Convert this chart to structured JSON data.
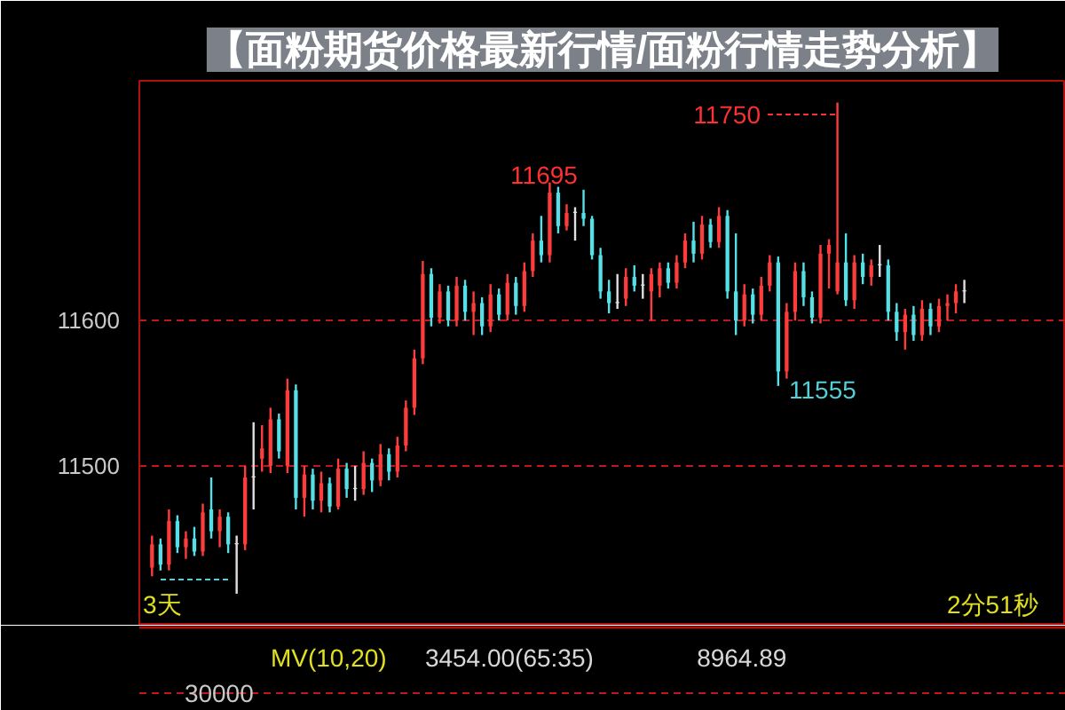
{
  "chart_data": {
    "type": "candlestick",
    "title": "【面粉期货价格最新行情/面粉行情走势分析】",
    "categories": [
      null,
      null,
      null,
      null,
      null,
      null,
      null,
      null,
      null,
      null,
      null,
      null,
      null,
      null,
      null,
      null,
      null,
      null,
      null,
      null,
      null,
      null,
      null,
      null,
      null,
      null,
      null,
      null,
      null,
      null,
      null,
      null,
      null,
      null,
      null,
      null,
      null,
      null,
      null,
      null,
      null,
      null,
      null,
      null,
      null,
      null,
      null,
      null,
      null,
      null,
      null,
      null,
      null,
      null,
      null,
      null,
      null,
      null,
      null,
      null,
      null,
      null,
      null,
      null,
      null,
      null,
      null,
      null,
      null,
      null,
      null,
      null,
      null,
      null,
      null,
      null,
      null,
      null,
      null,
      null,
      null,
      null,
      null,
      null,
      null,
      null,
      null,
      null,
      null,
      null,
      null,
      null,
      null,
      null,
      null,
      null,
      null
    ],
    "ohlc": [
      [
        11430,
        11452,
        11424,
        11446
      ],
      [
        11446,
        11450,
        11428,
        11432
      ],
      [
        11432,
        11470,
        11428,
        11462
      ],
      [
        11462,
        11466,
        11440,
        11444
      ],
      [
        11444,
        11455,
        11436,
        11450
      ],
      [
        11450,
        11458,
        11438,
        11441
      ],
      [
        11441,
        11474,
        11438,
        11468
      ],
      [
        11470,
        11492,
        11450,
        11455
      ],
      [
        11455,
        11470,
        11444,
        11465
      ],
      [
        11465,
        11468,
        11440,
        11446
      ],
      [
        11446,
        11452,
        11412,
        11446
      ],
      [
        11446,
        11500,
        11442,
        11492
      ],
      [
        11492,
        11530,
        11470,
        11492
      ],
      [
        11505,
        11528,
        11496,
        11512
      ],
      [
        11500,
        11540,
        11495,
        11532
      ],
      [
        11532,
        11536,
        11505,
        11510
      ],
      [
        11500,
        11560,
        11495,
        11552
      ],
      [
        11552,
        11556,
        11470,
        11478
      ],
      [
        11478,
        11500,
        11465,
        11494
      ],
      [
        11494,
        11498,
        11470,
        11476
      ],
      [
        11476,
        11496,
        11468,
        11488
      ],
      [
        11488,
        11492,
        11468,
        11472
      ],
      [
        11472,
        11505,
        11470,
        11498
      ],
      [
        11498,
        11502,
        11478,
        11484
      ],
      [
        11484,
        11500,
        11476,
        11484
      ],
      [
        11484,
        11510,
        11480,
        11502
      ],
      [
        11502,
        11505,
        11482,
        11490
      ],
      [
        11490,
        11515,
        11486,
        11508
      ],
      [
        11508,
        11512,
        11490,
        11496
      ],
      [
        11496,
        11520,
        11492,
        11514
      ],
      [
        11514,
        11545,
        11510,
        11540
      ],
      [
        11540,
        11580,
        11535,
        11574
      ],
      [
        11574,
        11641,
        11570,
        11632
      ],
      [
        11632,
        11636,
        11596,
        11602
      ],
      [
        11602,
        11625,
        11598,
        11620
      ],
      [
        11620,
        11624,
        11596,
        11600
      ],
      [
        11600,
        11630,
        11596,
        11624
      ],
      [
        11624,
        11628,
        11600,
        11606
      ],
      [
        11606,
        11620,
        11590,
        11612
      ],
      [
        11612,
        11616,
        11590,
        11596
      ],
      [
        11596,
        11625,
        11592,
        11618
      ],
      [
        11618,
        11622,
        11600,
        11604
      ],
      [
        11604,
        11632,
        11600,
        11626
      ],
      [
        11626,
        11630,
        11604,
        11610
      ],
      [
        11610,
        11640,
        11606,
        11634
      ],
      [
        11634,
        11660,
        11630,
        11655
      ],
      [
        11655,
        11672,
        11640,
        11645
      ],
      [
        11645,
        11695,
        11640,
        11688
      ],
      [
        11688,
        11692,
        11660,
        11665
      ],
      [
        11665,
        11680,
        11662,
        11674
      ],
      [
        11674,
        11678,
        11655,
        11674
      ],
      [
        11674,
        11690,
        11665,
        11670
      ],
      [
        11670,
        11672,
        11642,
        11645
      ],
      [
        11645,
        11650,
        11615,
        11620
      ],
      [
        11620,
        11628,
        11605,
        11612
      ],
      [
        11612,
        11632,
        11608,
        11612
      ],
      [
        11615,
        11636,
        11610,
        11630
      ],
      [
        11630,
        11638,
        11620,
        11624
      ],
      [
        11624,
        11632,
        11615,
        11624
      ],
      [
        11620,
        11636,
        11600,
        11632
      ],
      [
        11624,
        11640,
        11616,
        11636
      ],
      [
        11636,
        11640,
        11622,
        11626
      ],
      [
        11626,
        11645,
        11622,
        11640
      ],
      [
        11640,
        11660,
        11636,
        11655
      ],
      [
        11655,
        11668,
        11640,
        11646
      ],
      [
        11646,
        11672,
        11642,
        11666
      ],
      [
        11666,
        11670,
        11650,
        11654
      ],
      [
        11654,
        11678,
        11650,
        11672
      ],
      [
        11672,
        11676,
        11615,
        11620
      ],
      [
        11620,
        11660,
        11590,
        11600
      ],
      [
        11600,
        11625,
        11596,
        11618
      ],
      [
        11618,
        11622,
        11598,
        11604
      ],
      [
        11604,
        11630,
        11600,
        11624
      ],
      [
        11624,
        11645,
        11620,
        11640
      ],
      [
        11640,
        11644,
        11555,
        11565
      ],
      [
        11565,
        11612,
        11560,
        11606
      ],
      [
        11606,
        11640,
        11600,
        11634
      ],
      [
        11634,
        11640,
        11610,
        11616
      ],
      [
        11616,
        11620,
        11598,
        11602
      ],
      [
        11602,
        11652,
        11598,
        11646
      ],
      [
        11646,
        11656,
        11622,
        11652
      ],
      [
        11620,
        11750,
        11618,
        11640
      ],
      [
        11640,
        11660,
        11610,
        11614
      ],
      [
        11614,
        11645,
        11608,
        11640
      ],
      [
        11640,
        11646,
        11625,
        11630
      ],
      [
        11630,
        11642,
        11624,
        11638
      ],
      [
        11638,
        11652,
        11630,
        11638
      ],
      [
        11638,
        11642,
        11600,
        11606
      ],
      [
        11606,
        11612,
        11586,
        11592
      ],
      [
        11592,
        11608,
        11580,
        11604
      ],
      [
        11604,
        11610,
        11586,
        11590
      ],
      [
        11590,
        11614,
        11586,
        11608
      ],
      [
        11608,
        11612,
        11590,
        11596
      ],
      [
        11596,
        11615,
        11592,
        11610
      ],
      [
        11610,
        11618,
        11600,
        11612
      ],
      [
        11612,
        11625,
        11605,
        11620
      ],
      [
        11620,
        11628,
        11612,
        11620
      ]
    ],
    "colors": [
      "#ff3c3c",
      "#54e0e6",
      "#ff3c3c",
      "#54e0e6",
      "#ff3c3c",
      "#54e0e6",
      "#ff3c3c",
      "#54e0e6",
      "#ff3c3c",
      "#54e0e6",
      "#e0e0e0",
      "#ff3c3c",
      "#e0e0e0",
      "#ff3c3c",
      "#ff3c3c",
      "#54e0e6",
      "#ff3c3c",
      "#54e0e6",
      "#ff3c3c",
      "#54e0e6",
      "#ff3c3c",
      "#54e0e6",
      "#ff3c3c",
      "#54e0e6",
      "#e0e0e0",
      "#ff3c3c",
      "#54e0e6",
      "#ff3c3c",
      "#54e0e6",
      "#ff3c3c",
      "#ff3c3c",
      "#ff3c3c",
      "#ff3c3c",
      "#54e0e6",
      "#ff3c3c",
      "#54e0e6",
      "#ff3c3c",
      "#54e0e6",
      "#ff3c3c",
      "#54e0e6",
      "#ff3c3c",
      "#54e0e6",
      "#ff3c3c",
      "#54e0e6",
      "#ff3c3c",
      "#ff3c3c",
      "#54e0e6",
      "#ff3c3c",
      "#54e0e6",
      "#ff3c3c",
      "#e0e0e0",
      "#54e0e6",
      "#54e0e6",
      "#54e0e6",
      "#54e0e6",
      "#e0e0e0",
      "#ff3c3c",
      "#54e0e6",
      "#e0e0e0",
      "#ff3c3c",
      "#ff3c3c",
      "#54e0e6",
      "#ff3c3c",
      "#ff3c3c",
      "#54e0e6",
      "#ff3c3c",
      "#54e0e6",
      "#ff3c3c",
      "#54e0e6",
      "#54e0e6",
      "#ff3c3c",
      "#54e0e6",
      "#ff3c3c",
      "#ff3c3c",
      "#54e0e6",
      "#ff3c3c",
      "#ff3c3c",
      "#54e0e6",
      "#54e0e6",
      "#ff3c3c",
      "#ff3c3c",
      "#ff3c3c",
      "#54e0e6",
      "#ff3c3c",
      "#54e0e6",
      "#ff3c3c",
      "#e0e0e0",
      "#54e0e6",
      "#54e0e6",
      "#ff3c3c",
      "#54e0e6",
      "#ff3c3c",
      "#54e0e6",
      "#ff3c3c",
      "#ff3c3c",
      "#ff3c3c",
      "#e0e0e0"
    ],
    "ylim": [
      11390,
      11765
    ],
    "yticks": [
      11500,
      11600
    ],
    "grid": "y",
    "annotations": [
      "11750",
      "11695",
      "11555",
      "3天",
      "2分51秒",
      "MV(10,20)",
      "3454.00(65:35)",
      "8964.89",
      "30000"
    ]
  }
}
